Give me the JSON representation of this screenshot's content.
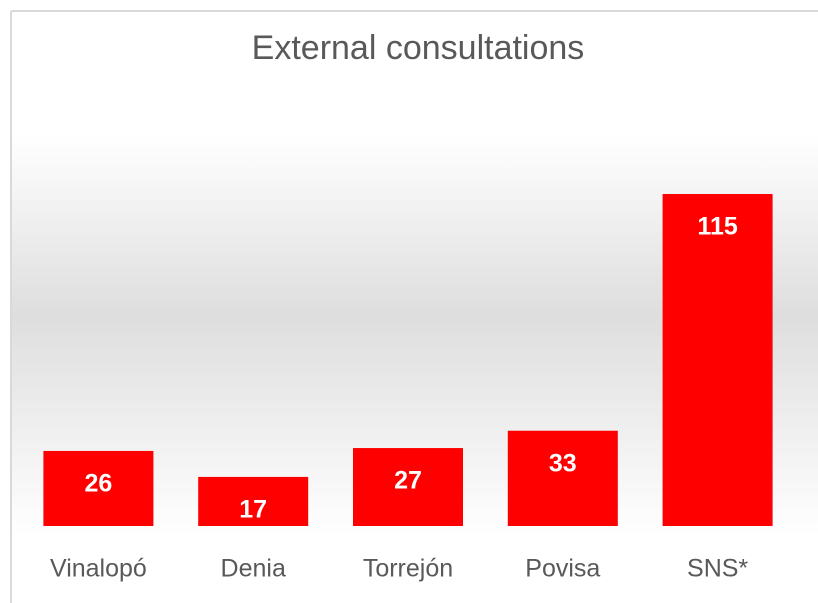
{
  "chart_data": {
    "type": "bar",
    "title": "External consultations",
    "categories": [
      "Vinalopó",
      "Denia",
      "Torrejón",
      "Povisa",
      "SNS*"
    ],
    "values": [
      26,
      17,
      27,
      33,
      115
    ],
    "color": "#ff0000"
  }
}
